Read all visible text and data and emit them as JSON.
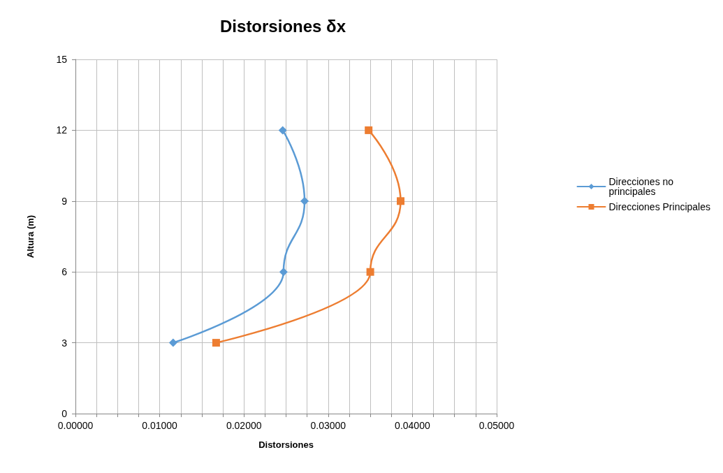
{
  "chart_data": {
    "type": "line",
    "title": "Distorsiones δx",
    "xlabel": "Distorsiones",
    "ylabel": "Altura (m)",
    "series": [
      {
        "name": "Direcciones no principales",
        "color": "#5b9bd5",
        "marker": "diamond",
        "x": [
          0.0116,
          0.0247,
          0.0272,
          0.0246
        ],
        "values": [
          3,
          6,
          9,
          12
        ]
      },
      {
        "name": "Direcciones Principales",
        "color": "#ed7d31",
        "marker": "square",
        "x": [
          0.0167,
          0.035,
          0.0386,
          0.0348
        ],
        "values": [
          3,
          6,
          9,
          12
        ]
      }
    ],
    "xlim": [
      0,
      0.05
    ],
    "xticks": [
      {
        "value": 0,
        "label": "0.00000"
      },
      {
        "value": 0.0025,
        "label": null
      },
      {
        "value": 0.005,
        "label": null
      },
      {
        "value": 0.0075,
        "label": null
      },
      {
        "value": 0.01,
        "label": "0.01000"
      },
      {
        "value": 0.0125,
        "label": null
      },
      {
        "value": 0.015,
        "label": null
      },
      {
        "value": 0.0175,
        "label": null
      },
      {
        "value": 0.02,
        "label": "0.02000"
      },
      {
        "value": 0.0225,
        "label": null
      },
      {
        "value": 0.025,
        "label": null
      },
      {
        "value": 0.0275,
        "label": null
      },
      {
        "value": 0.03,
        "label": "0.03000"
      },
      {
        "value": 0.0325,
        "label": null
      },
      {
        "value": 0.035,
        "label": null
      },
      {
        "value": 0.0375,
        "label": null
      },
      {
        "value": 0.04,
        "label": "0.04000"
      },
      {
        "value": 0.0425,
        "label": null
      },
      {
        "value": 0.045,
        "label": null
      },
      {
        "value": 0.0475,
        "label": null
      },
      {
        "value": 0.05,
        "label": "0.05000"
      }
    ],
    "ylim": [
      0,
      15
    ],
    "yticks": [
      0,
      3,
      6,
      9,
      12,
      15
    ],
    "grid": true,
    "legend": "right"
  }
}
